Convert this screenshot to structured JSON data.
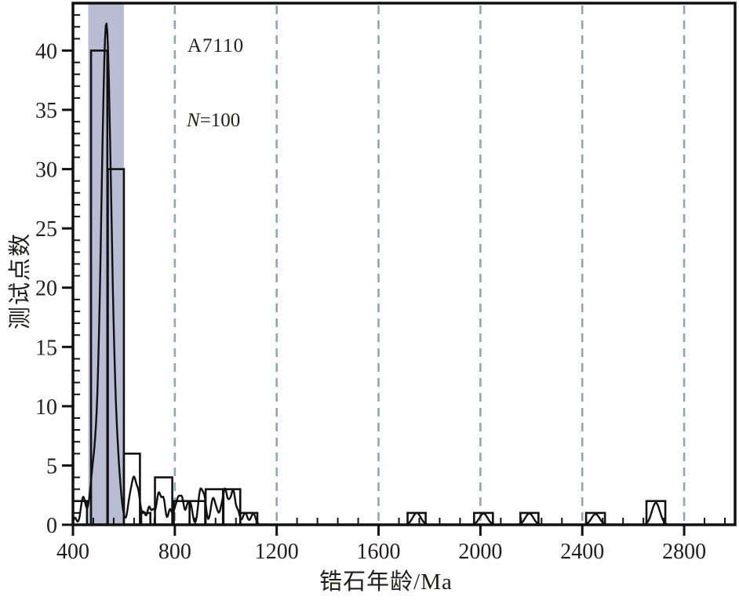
{
  "figure": {
    "background": "#ffffff",
    "annotations": {
      "sample_id": "A7110",
      "n_var": "N",
      "n_rest": "=100"
    }
  },
  "chart_data": {
    "type": "bar",
    "subtype": "histogram-with-kde",
    "title": "",
    "xlabel": "锆石年龄/Ma",
    "ylabel": "测试点数",
    "xlim": [
      400,
      3000
    ],
    "ylim": [
      0,
      44
    ],
    "x_major_ticks": [
      400,
      800,
      1200,
      1600,
      2000,
      2400,
      2800
    ],
    "x_minor_step": 80,
    "y_major_ticks": [
      0,
      5,
      10,
      15,
      20,
      25,
      30,
      35,
      40
    ],
    "y_minor_step": 1,
    "grid": {
      "dashed_vertical_lines": [
        800,
        1200,
        1600,
        2000,
        2400,
        2800
      ],
      "color": "#8fa7ad",
      "dash": [
        11,
        8
      ]
    },
    "highlight_band": {
      "x0": 460,
      "x1": 600,
      "color": "#b8bdd3"
    },
    "sample_count": 100,
    "bars_note": "each bar = [age_min_Ma, age_max_Ma, count]",
    "bars": [
      [
        400,
        455,
        2
      ],
      [
        471,
        535,
        40
      ],
      [
        537,
        600,
        30
      ],
      [
        600,
        663,
        6
      ],
      [
        668,
        704,
        1
      ],
      [
        722,
        790,
        4
      ],
      [
        796,
        858,
        2
      ],
      [
        858,
        919,
        2
      ],
      [
        921,
        989,
        3
      ],
      [
        991,
        1057,
        3
      ],
      [
        1057,
        1124,
        1
      ],
      [
        1714,
        1785,
        1
      ],
      [
        1975,
        2049,
        1
      ],
      [
        2157,
        2228,
        1
      ],
      [
        2415,
        2489,
        1
      ],
      [
        2652,
        2726,
        2
      ]
    ],
    "kde_note": "gaussian mixture [center_Ma, peak_height_counts, sigma_Ma]; main peak ~531 Ma at 42.3",
    "kde_peaks": [
      [
        408,
        0.6,
        6
      ],
      [
        440,
        2.3,
        9
      ],
      [
        480,
        4.0,
        14
      ],
      [
        531,
        42.3,
        20
      ],
      [
        575,
        3.5,
        14
      ],
      [
        622,
        1.8,
        8
      ],
      [
        639,
        3.7,
        9
      ],
      [
        657,
        2.4,
        8
      ],
      [
        678,
        1.0,
        7
      ],
      [
        699,
        1.5,
        7
      ],
      [
        715,
        1.1,
        6
      ],
      [
        737,
        2.7,
        9
      ],
      [
        756,
        2.0,
        7
      ],
      [
        781,
        1.3,
        7
      ],
      [
        800,
        1.1,
        7
      ],
      [
        813,
        1.8,
        7
      ],
      [
        828,
        2.2,
        8
      ],
      [
        850,
        1.5,
        7
      ],
      [
        863,
        1.5,
        7
      ],
      [
        895,
        1.0,
        7
      ],
      [
        903,
        2.3,
        8
      ],
      [
        917,
        1.9,
        7
      ],
      [
        950,
        2.2,
        9
      ],
      [
        966,
        0.8,
        7
      ],
      [
        983,
        1.2,
        7
      ],
      [
        998,
        2.9,
        8
      ],
      [
        1014,
        1.3,
        6
      ],
      [
        1029,
        2.9,
        8
      ],
      [
        1048,
        1.1,
        7
      ],
      [
        1076,
        1.0,
        9
      ],
      [
        1108,
        0.95,
        9
      ],
      [
        1750,
        1.0,
        16
      ],
      [
        2012,
        0.95,
        16
      ],
      [
        2192,
        0.95,
        16
      ],
      [
        2452,
        0.9,
        16
      ],
      [
        2689,
        1.85,
        16
      ]
    ],
    "line_color": "#111111",
    "text_color": "#221d1d",
    "legend": null
  }
}
